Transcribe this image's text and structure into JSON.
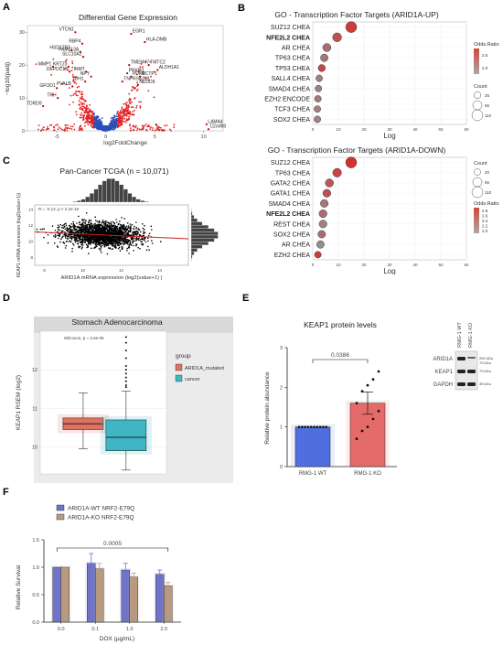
{
  "panels": {
    "A": {
      "label": "A",
      "chart_data": {
        "type": "scatter",
        "title": "Differential Gene Expression",
        "xlabel": "log2FoldChange",
        "ylabel": "−log10(padj)",
        "xlim": [
          -8,
          12
        ],
        "ylim": [
          0,
          32
        ],
        "x_ticks": [
          "-5",
          "0",
          "5",
          "10"
        ],
        "y_ticks": [
          "0",
          "10",
          "20",
          "30"
        ],
        "colors": {
          "significant": "#e02020",
          "not_significant": "#2b4fb8"
        },
        "labeled_genes": [
          {
            "name": "VTCN1",
            "x": -3.1,
            "y": 30
          },
          {
            "name": "EGR1",
            "x": 2.6,
            "y": 29.5
          },
          {
            "name": "RBP4",
            "x": -2.4,
            "y": 26.5
          },
          {
            "name": "HLA-DMB",
            "x": 4.0,
            "y": 27
          },
          {
            "name": "HSD17B2",
            "x": -3.5,
            "y": 24.5
          },
          {
            "name": "FAM213A",
            "x": -2.6,
            "y": 24
          },
          {
            "name": "SLC10A2",
            "x": -2.3,
            "y": 22.5
          },
          {
            "name": "MMP1",
            "x": -5.4,
            "y": 19.5
          },
          {
            "name": "KRT23",
            "x": -3.8,
            "y": 19.5
          },
          {
            "name": "TMEM47",
            "x": 2.4,
            "y": 20
          },
          {
            "name": "TMTC2",
            "x": 4.4,
            "y": 20
          },
          {
            "name": "ALDH1A1",
            "x": 5.3,
            "y": 18.5
          },
          {
            "name": "DEPDC1B",
            "x": -3.7,
            "y": 18
          },
          {
            "name": "INMT",
            "x": -2.0,
            "y": 18
          },
          {
            "name": "PRKD3",
            "x": 2.2,
            "y": 17.5
          },
          {
            "name": "MCTP1",
            "x": 3.5,
            "y": 16.5
          },
          {
            "name": "NPY",
            "x": -1.5,
            "y": 16.5
          },
          {
            "name": "PDK4",
            "x": 2.6,
            "y": 16.5
          },
          {
            "name": "IDH1",
            "x": -2.1,
            "y": 15
          },
          {
            "name": "TNFRSF11B",
            "x": 1.7,
            "y": 15
          },
          {
            "name": "NEDD9",
            "x": 3.3,
            "y": 14
          },
          {
            "name": "GFOD1",
            "x": -5.0,
            "y": 13
          },
          {
            "name": "PVALB",
            "x": -3.4,
            "y": 13.5
          },
          {
            "name": "TRH",
            "x": -4.9,
            "y": 10
          },
          {
            "name": "TDRD9",
            "x": -6.4,
            "y": 7.5
          },
          {
            "name": "LAMA4",
            "x": 10.3,
            "y": 2
          },
          {
            "name": "C2orf80",
            "x": 10.5,
            "y": 0.5
          }
        ]
      }
    },
    "B": {
      "label": "B",
      "charts": [
        {
          "chart_data": {
            "type": "scatter",
            "title": "GO - Transcription Factor Targets (ARID1A-UP)",
            "xlabel": "Log",
            "xlim": [
              0,
              60
            ],
            "x_ticks": [
              "0",
              "10",
              "20",
              "30",
              "40",
              "50",
              "60"
            ],
            "terms": [
              {
                "name": "SUZ12 CHEA",
                "log": 15,
                "count": 110,
                "odds": 2.7,
                "bold": false
              },
              {
                "name": "NFE2L2 CHEA",
                "log": 9.5,
                "count": 60,
                "odds": 2.5,
                "bold": true
              },
              {
                "name": "AR CHEA",
                "log": 5.5,
                "count": 45,
                "odds": 2.2,
                "bold": false
              },
              {
                "name": "TP63 CHEA",
                "log": 4.5,
                "count": 35,
                "odds": 2.1,
                "bold": false
              },
              {
                "name": "TP53 CHEA",
                "log": 3.5,
                "count": 28,
                "odds": 2.6,
                "bold": false
              },
              {
                "name": "SALL4 CHEA",
                "log": 2.5,
                "count": 22,
                "odds": 2.0,
                "bold": false
              },
              {
                "name": "SMAD4 CHEA",
                "log": 2.2,
                "count": 22,
                "odds": 2.0,
                "bold": false
              },
              {
                "name": "EZH2 ENCODE",
                "log": 2.0,
                "count": 22,
                "odds": 2.1,
                "bold": false
              },
              {
                "name": "TCF3 CHEA",
                "log": 1.8,
                "count": 22,
                "odds": 2.0,
                "bold": false
              },
              {
                "name": "SOX2 CHEA",
                "log": 1.8,
                "count": 22,
                "odds": 2.0,
                "bold": false
              }
            ],
            "legend": {
              "odds_title": "Odds.Ratio",
              "odds_ticks": [
                "2.5",
                "2.0"
              ],
              "count_title": "Count",
              "count_values": [
                "25",
                "65",
                "110"
              ]
            }
          }
        },
        {
          "chart_data": {
            "type": "scatter",
            "title": "GO - Transcription Factor Targets (ARID1A-DOWN)",
            "xlabel": "Log",
            "xlim": [
              0,
              60
            ],
            "x_ticks": [
              "0",
              "10",
              "20",
              "30",
              "40",
              "50",
              "60"
            ],
            "terms": [
              {
                "name": "SUZ12 CHEA",
                "log": 15,
                "count": 110,
                "odds": 2.8,
                "bold": false
              },
              {
                "name": "TP63 CHEA",
                "log": 9.5,
                "count": 55,
                "odds": 2.6,
                "bold": false
              },
              {
                "name": "GATA2 CHEA",
                "log": 6.5,
                "count": 45,
                "odds": 2.4,
                "bold": false
              },
              {
                "name": "GATA1 CHEA",
                "log": 5.5,
                "count": 40,
                "odds": 2.5,
                "bold": false
              },
              {
                "name": "SMAD4 CHEA",
                "log": 4.5,
                "count": 38,
                "odds": 2.1,
                "bold": false
              },
              {
                "name": "NFE2L2 CHEA",
                "log": 4.0,
                "count": 40,
                "odds": 2.2,
                "bold": true
              },
              {
                "name": "REST CHEA",
                "log": 4.0,
                "count": 38,
                "odds": 2.0,
                "bold": false
              },
              {
                "name": "SOX2 CHEA",
                "log": 3.5,
                "count": 35,
                "odds": 2.2,
                "bold": false
              },
              {
                "name": "AR CHEA",
                "log": 3.0,
                "count": 35,
                "odds": 1.9,
                "bold": false
              },
              {
                "name": "EZH2 CHEA",
                "log": 2.0,
                "count": 22,
                "odds": 2.7,
                "bold": false
              }
            ],
            "legend": {
              "count_title": "Count",
              "count_values": [
                "20",
                "65",
                "110"
              ],
              "odds_title": "Odds.Ratio",
              "odds_ticks": [
                "2.8",
                "2.6",
                "2.4",
                "2.2",
                "2.0"
              ]
            }
          }
        }
      ]
    },
    "C": {
      "label": "C",
      "chart_data": {
        "type": "scatter",
        "title": "Pan-Cancer TCGA (n = 10,071)",
        "xlabel": "ARID1A mRNA expression (log2(value+1) )",
        "ylabel": "KEAP1 mRNA expression (log2(value+1))",
        "xlim": [
          7.5,
          15.5
        ],
        "ylim": [
          7,
          14.5
        ],
        "x_ticks": [
          "8",
          "10",
          "12",
          "14"
        ],
        "y_ticks": [
          "8",
          "10",
          "12",
          "14"
        ],
        "stat_text": "R = -0.12, p < 2.2e-16",
        "regression": {
          "x0": 7.5,
          "y0": 11.15,
          "x1": 15.5,
          "y1": 10.3
        },
        "center": {
          "x": 11.0,
          "y": 10.8
        }
      }
    },
    "D": {
      "label": "D",
      "chart_data": {
        "type": "box",
        "title": "Stomach Adenocarcinoma",
        "ylabel": "KEAP1 RSEM (log2)",
        "ylim": [
          9.3,
          13
        ],
        "y_ticks": [
          "10",
          "11",
          "12"
        ],
        "stat_text": "Wilcoxon, p = 2.6e-06",
        "legend_title": "group",
        "groups": [
          {
            "name": "ARID1A_mutated",
            "color": "#e07060",
            "min": 9.95,
            "q1": 10.45,
            "median": 10.6,
            "q3": 10.75,
            "max": 11.4
          },
          {
            "name": "cancer",
            "color": "#3fb6c4",
            "min": 9.4,
            "q1": 9.9,
            "median": 10.25,
            "q3": 10.7,
            "max": 11.45
          }
        ],
        "outliers": [
          11.55,
          11.6,
          11.7,
          11.8,
          11.9,
          12.0,
          12.1,
          12.3,
          12.5,
          12.7,
          12.85
        ]
      }
    },
    "E": {
      "label": "E",
      "chart_data": {
        "type": "bar",
        "title": "KEAP1 protein levels",
        "ylabel": "Relative protein abundance",
        "ylim": [
          0,
          3
        ],
        "y_ticks": [
          "0",
          "1",
          "2",
          "3"
        ],
        "categories": [
          "RMG-1 WT",
          "RMG-1 KO"
        ],
        "values": [
          1.0,
          1.6
        ],
        "errors": [
          0.0,
          0.28
        ],
        "colors": [
          "#4f6fe0",
          "#e56b6b"
        ],
        "significance": "0.0386",
        "points_ko": [
          0.7,
          0.9,
          1.0,
          1.2,
          1.4,
          1.6,
          1.9,
          2.05,
          2.2,
          2.4
        ]
      },
      "blot": {
        "lanes": [
          "RMG-1 WT",
          "RMG-1 KO"
        ],
        "bands": [
          {
            "protein": "ARID1A",
            "kda": "250 kDa",
            "second": "70 kDa"
          },
          {
            "protein": "KEAP1",
            "kda": "70 kDa"
          },
          {
            "protein": "GAPDH",
            "kda": "35 kDa"
          }
        ]
      }
    },
    "F": {
      "label": "F",
      "chart_data": {
        "type": "bar",
        "xlabel": "DOX (µg/mL)",
        "ylabel": "Relative Survival",
        "ylim": [
          0,
          1.5
        ],
        "y_ticks": [
          "0.0",
          "0.5",
          "1.0",
          "1.5"
        ],
        "categories": [
          "0.0",
          "0.1",
          "1.0",
          "2.0"
        ],
        "series": [
          {
            "name": "ARID1A-WT NRF2-E79Q",
            "color": "#6f74c8",
            "values": [
              1.0,
              1.07,
              0.95,
              0.87
            ],
            "errors": [
              0.0,
              0.18,
              0.12,
              0.08
            ]
          },
          {
            "name": "ARID1A-KO NRF2-E79Q",
            "color": "#b89a80",
            "values": [
              1.0,
              0.97,
              0.82,
              0.66
            ],
            "errors": [
              0.0,
              0.1,
              0.07,
              0.06
            ]
          }
        ],
        "significance": "0.0005"
      }
    }
  }
}
